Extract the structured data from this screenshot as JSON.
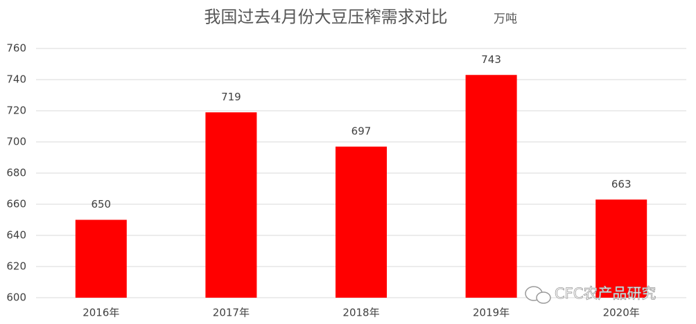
{
  "chart_data": {
    "type": "bar",
    "title": "我国过去4月份大豆压榨需求对比",
    "unit": "万吨",
    "categories": [
      "2016年",
      "2017年",
      "2018年",
      "2019年",
      "2020年"
    ],
    "values": [
      650,
      719,
      697,
      743,
      663
    ],
    "color": "#ff0000",
    "ylim": [
      600,
      760
    ],
    "yticks": [
      600,
      620,
      640,
      660,
      680,
      700,
      720,
      740,
      760
    ],
    "grid": true
  },
  "watermark": "CFC农产品研究"
}
